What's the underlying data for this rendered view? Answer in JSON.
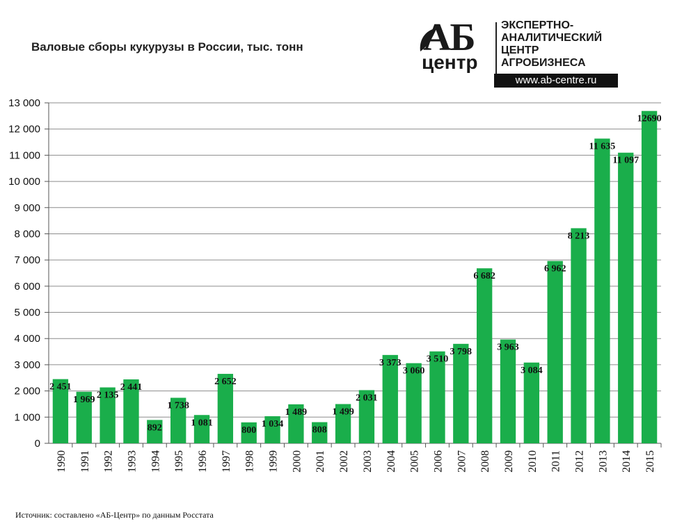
{
  "title": "Валовые сборы кукурузы в России, тыс. тонн",
  "source": "Источник:  составлено «АБ-Центр»   по данным Росстата",
  "logo": {
    "abbrev": "АБ",
    "centr": "центр",
    "line1": "ЭКСПЕРТНО-",
    "line2": "АНАЛИТИЧЕСКИЙ",
    "line3": "ЦЕНТР",
    "line4": "АГРОБИЗНЕСА",
    "url": "www.ab-centre.ru"
  },
  "colors": {
    "bar": "#1aae4b",
    "grid": "#8c8c8c",
    "axis": "#555555"
  },
  "chart_data": {
    "type": "bar",
    "title": "Валовые сборы кукурузы в России, тыс. тонн",
    "categories": [
      "1990",
      "1991",
      "1992",
      "1993",
      "1994",
      "1995",
      "1996",
      "1997",
      "1998",
      "1999",
      "2000",
      "2001",
      "2002",
      "2003",
      "2004",
      "2005",
      "2006",
      "2007",
      "2008",
      "2009",
      "2010",
      "2011",
      "2012",
      "2013",
      "2014",
      "2015"
    ],
    "values": [
      2451,
      1969,
      2135,
      2441,
      892,
      1738,
      1081,
      2652,
      800,
      1034,
      1489,
      808,
      1499,
      2031,
      3373,
      3060,
      3510,
      3798,
      6682,
      3963,
      3084,
      6962,
      8213,
      11635,
      11097,
      12690
    ],
    "data_labels": [
      "2 451",
      "1 969",
      "2 135",
      "2 441",
      "892",
      "1 738",
      "1 081",
      "2 652",
      "800",
      "1 034",
      "1 489",
      "808",
      "1 499",
      "2 031",
      "3 373",
      "3 060",
      "3 510",
      "3 798",
      "6 682",
      "3 963",
      "3 084",
      "6 962",
      "8 213",
      "11 635",
      "11 097",
      "12690"
    ],
    "ylim": [
      0,
      13000
    ],
    "yticks": [
      0,
      1000,
      2000,
      3000,
      4000,
      5000,
      6000,
      7000,
      8000,
      9000,
      10000,
      11000,
      12000,
      13000
    ],
    "ytick_labels": [
      "0",
      "1 000",
      "2 000",
      "3 000",
      "4 000",
      "5 000",
      "6 000",
      "7 000",
      "8 000",
      "9 000",
      "10 000",
      "11 000",
      "12 000",
      "13 000"
    ],
    "xlabel": "",
    "ylabel": "",
    "grid": true
  }
}
